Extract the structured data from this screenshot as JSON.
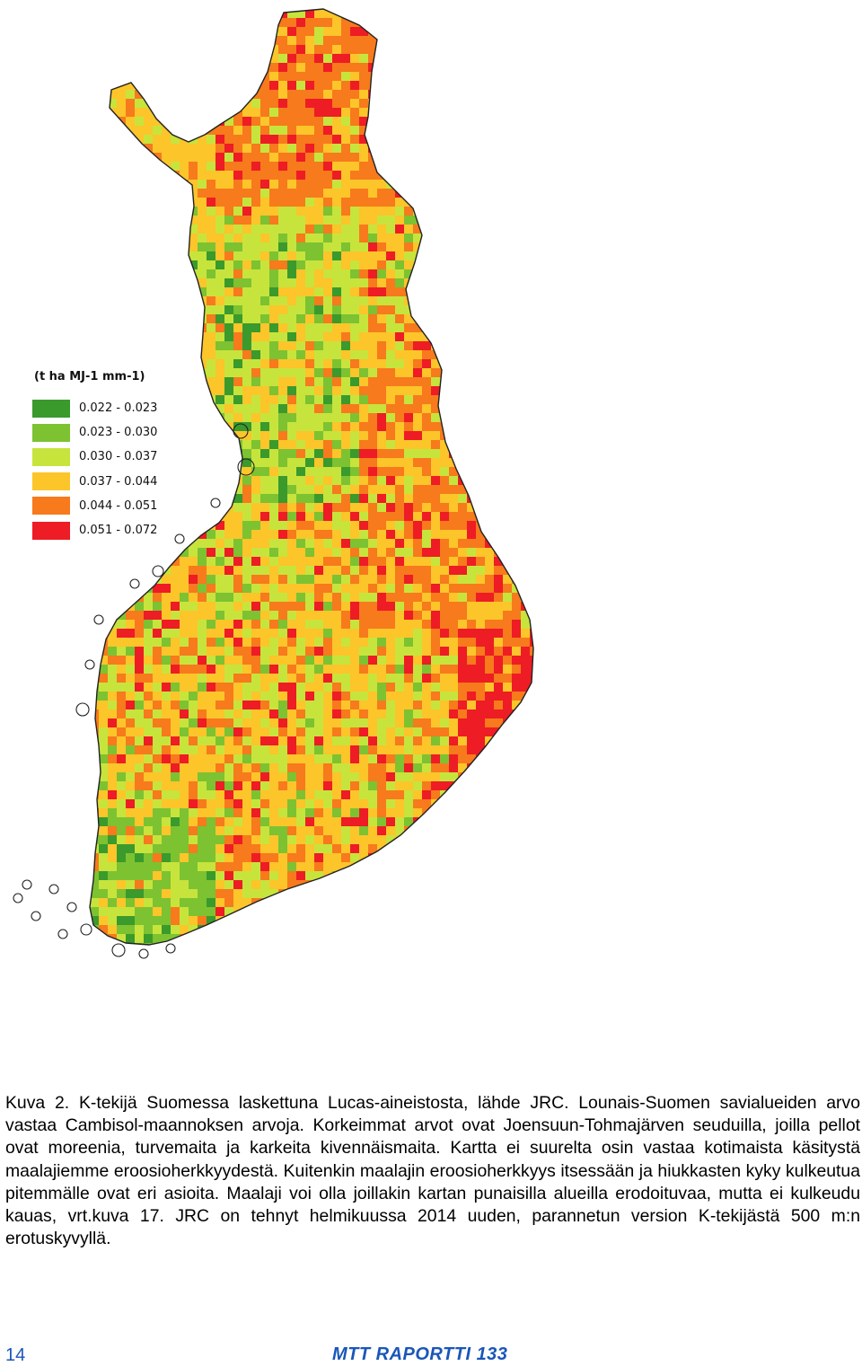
{
  "legend": {
    "title": "(t ha MJ-1 mm-1)",
    "items": [
      {
        "label": "0.022 - 0.023",
        "color": "#3a9a2c"
      },
      {
        "label": "0.023 - 0.030",
        "color": "#7dc231"
      },
      {
        "label": "0.030 - 0.037",
        "color": "#c7e43c"
      },
      {
        "label": "0.037 - 0.044",
        "color": "#fcc52a"
      },
      {
        "label": "0.044 - 0.051",
        "color": "#f77a1c"
      },
      {
        "label": "0.051 - 0.072",
        "color": "#ee1c24"
      }
    ]
  },
  "caption": "Kuva 2. K-tekijä Suomessa laskettuna Lucas-aineistosta, lähde JRC. Lounais-Suomen savialueiden arvo vastaa Cambisol-maannoksen arvoja. Korkeimmat arvot ovat Joensuun-Tohmajärven seuduilla, joilla pellot ovat moreenia, turvemaita ja karkeita kivennäismaita. Kartta ei suurelta osin vastaa kotimaista käsitystä maalajiemme eroosioherkkyydestä. Kuitenkin maalajin eroosioherkkyys itsessään ja hiukkasten kyky kulkeutua pitemmälle ovat eri asioita. Maalaji voi olla joillakin kartan punaisilla alueilla erodoituvaa, mutta ei kulkeudu kauas, vrt.kuva 17. JRC on tehnyt helmikuussa 2014 uuden, parannetun version K-tekijästä 500 m:n erotuskyvyllä.",
  "footer": {
    "page_number": "14",
    "report_name": "MTT RAPORTTI 133"
  }
}
